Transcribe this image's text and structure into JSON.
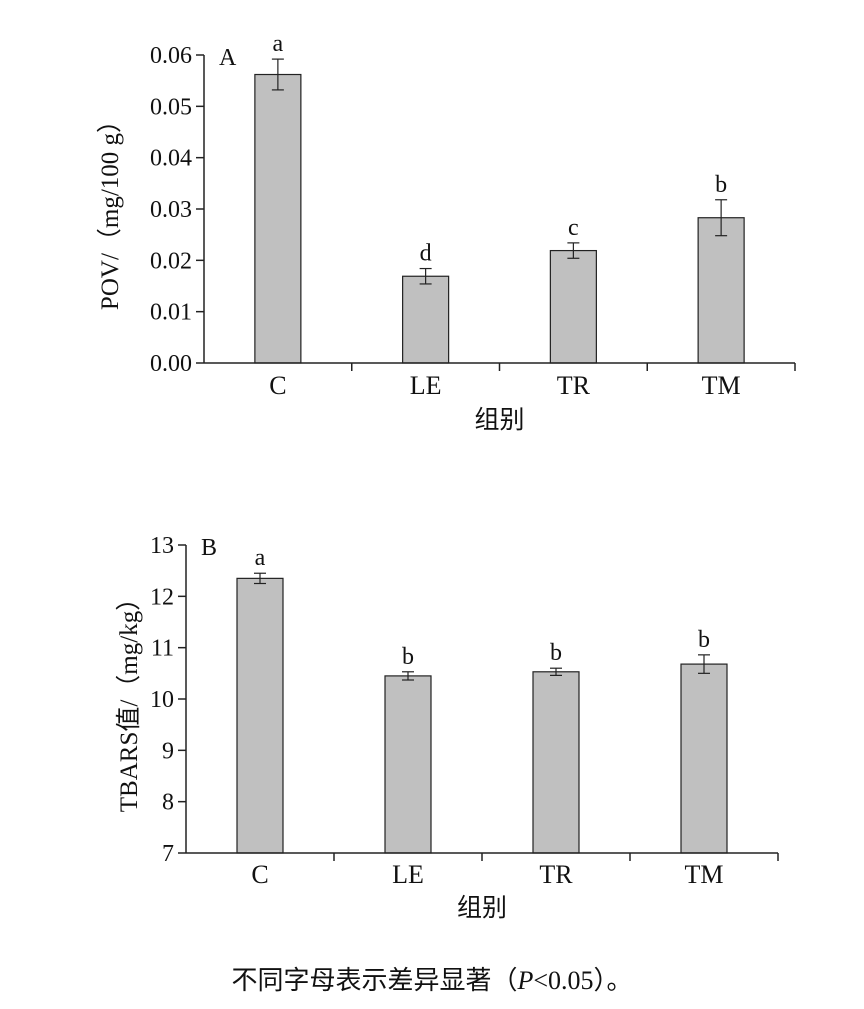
{
  "chart_data": [
    {
      "type": "bar",
      "panel": "A",
      "categories": [
        "C",
        "LE",
        "TR",
        "TM"
      ],
      "values": [
        0.0562,
        0.0169,
        0.0219,
        0.0283
      ],
      "errors": [
        0.003,
        0.0015,
        0.0015,
        0.0035
      ],
      "significance": [
        "a",
        "d",
        "c",
        "b"
      ],
      "xlabel": "组别",
      "ylabel": "POV/（mg/100 g）",
      "ylim": [
        0,
        0.06
      ],
      "yticks": [
        "0.00",
        "0.01",
        "0.02",
        "0.03",
        "0.04",
        "0.05",
        "0.06"
      ],
      "bar_color": "#c0c0c0"
    },
    {
      "type": "bar",
      "panel": "B",
      "categories": [
        "C",
        "LE",
        "TR",
        "TM"
      ],
      "values": [
        12.35,
        10.45,
        10.53,
        10.68
      ],
      "errors": [
        0.1,
        0.08,
        0.07,
        0.18
      ],
      "significance": [
        "a",
        "b",
        "b",
        "b"
      ],
      "xlabel": "组别",
      "ylabel": "TBARS值/（mg/kg）",
      "ylim": [
        7,
        13
      ],
      "yticks": [
        "7",
        "8",
        "9",
        "10",
        "11",
        "12",
        "13"
      ],
      "bar_color": "#c0c0c0"
    }
  ],
  "caption": {
    "before": "不同字母表示差异显著（",
    "italic": "P",
    "after": "<0.05）。"
  }
}
